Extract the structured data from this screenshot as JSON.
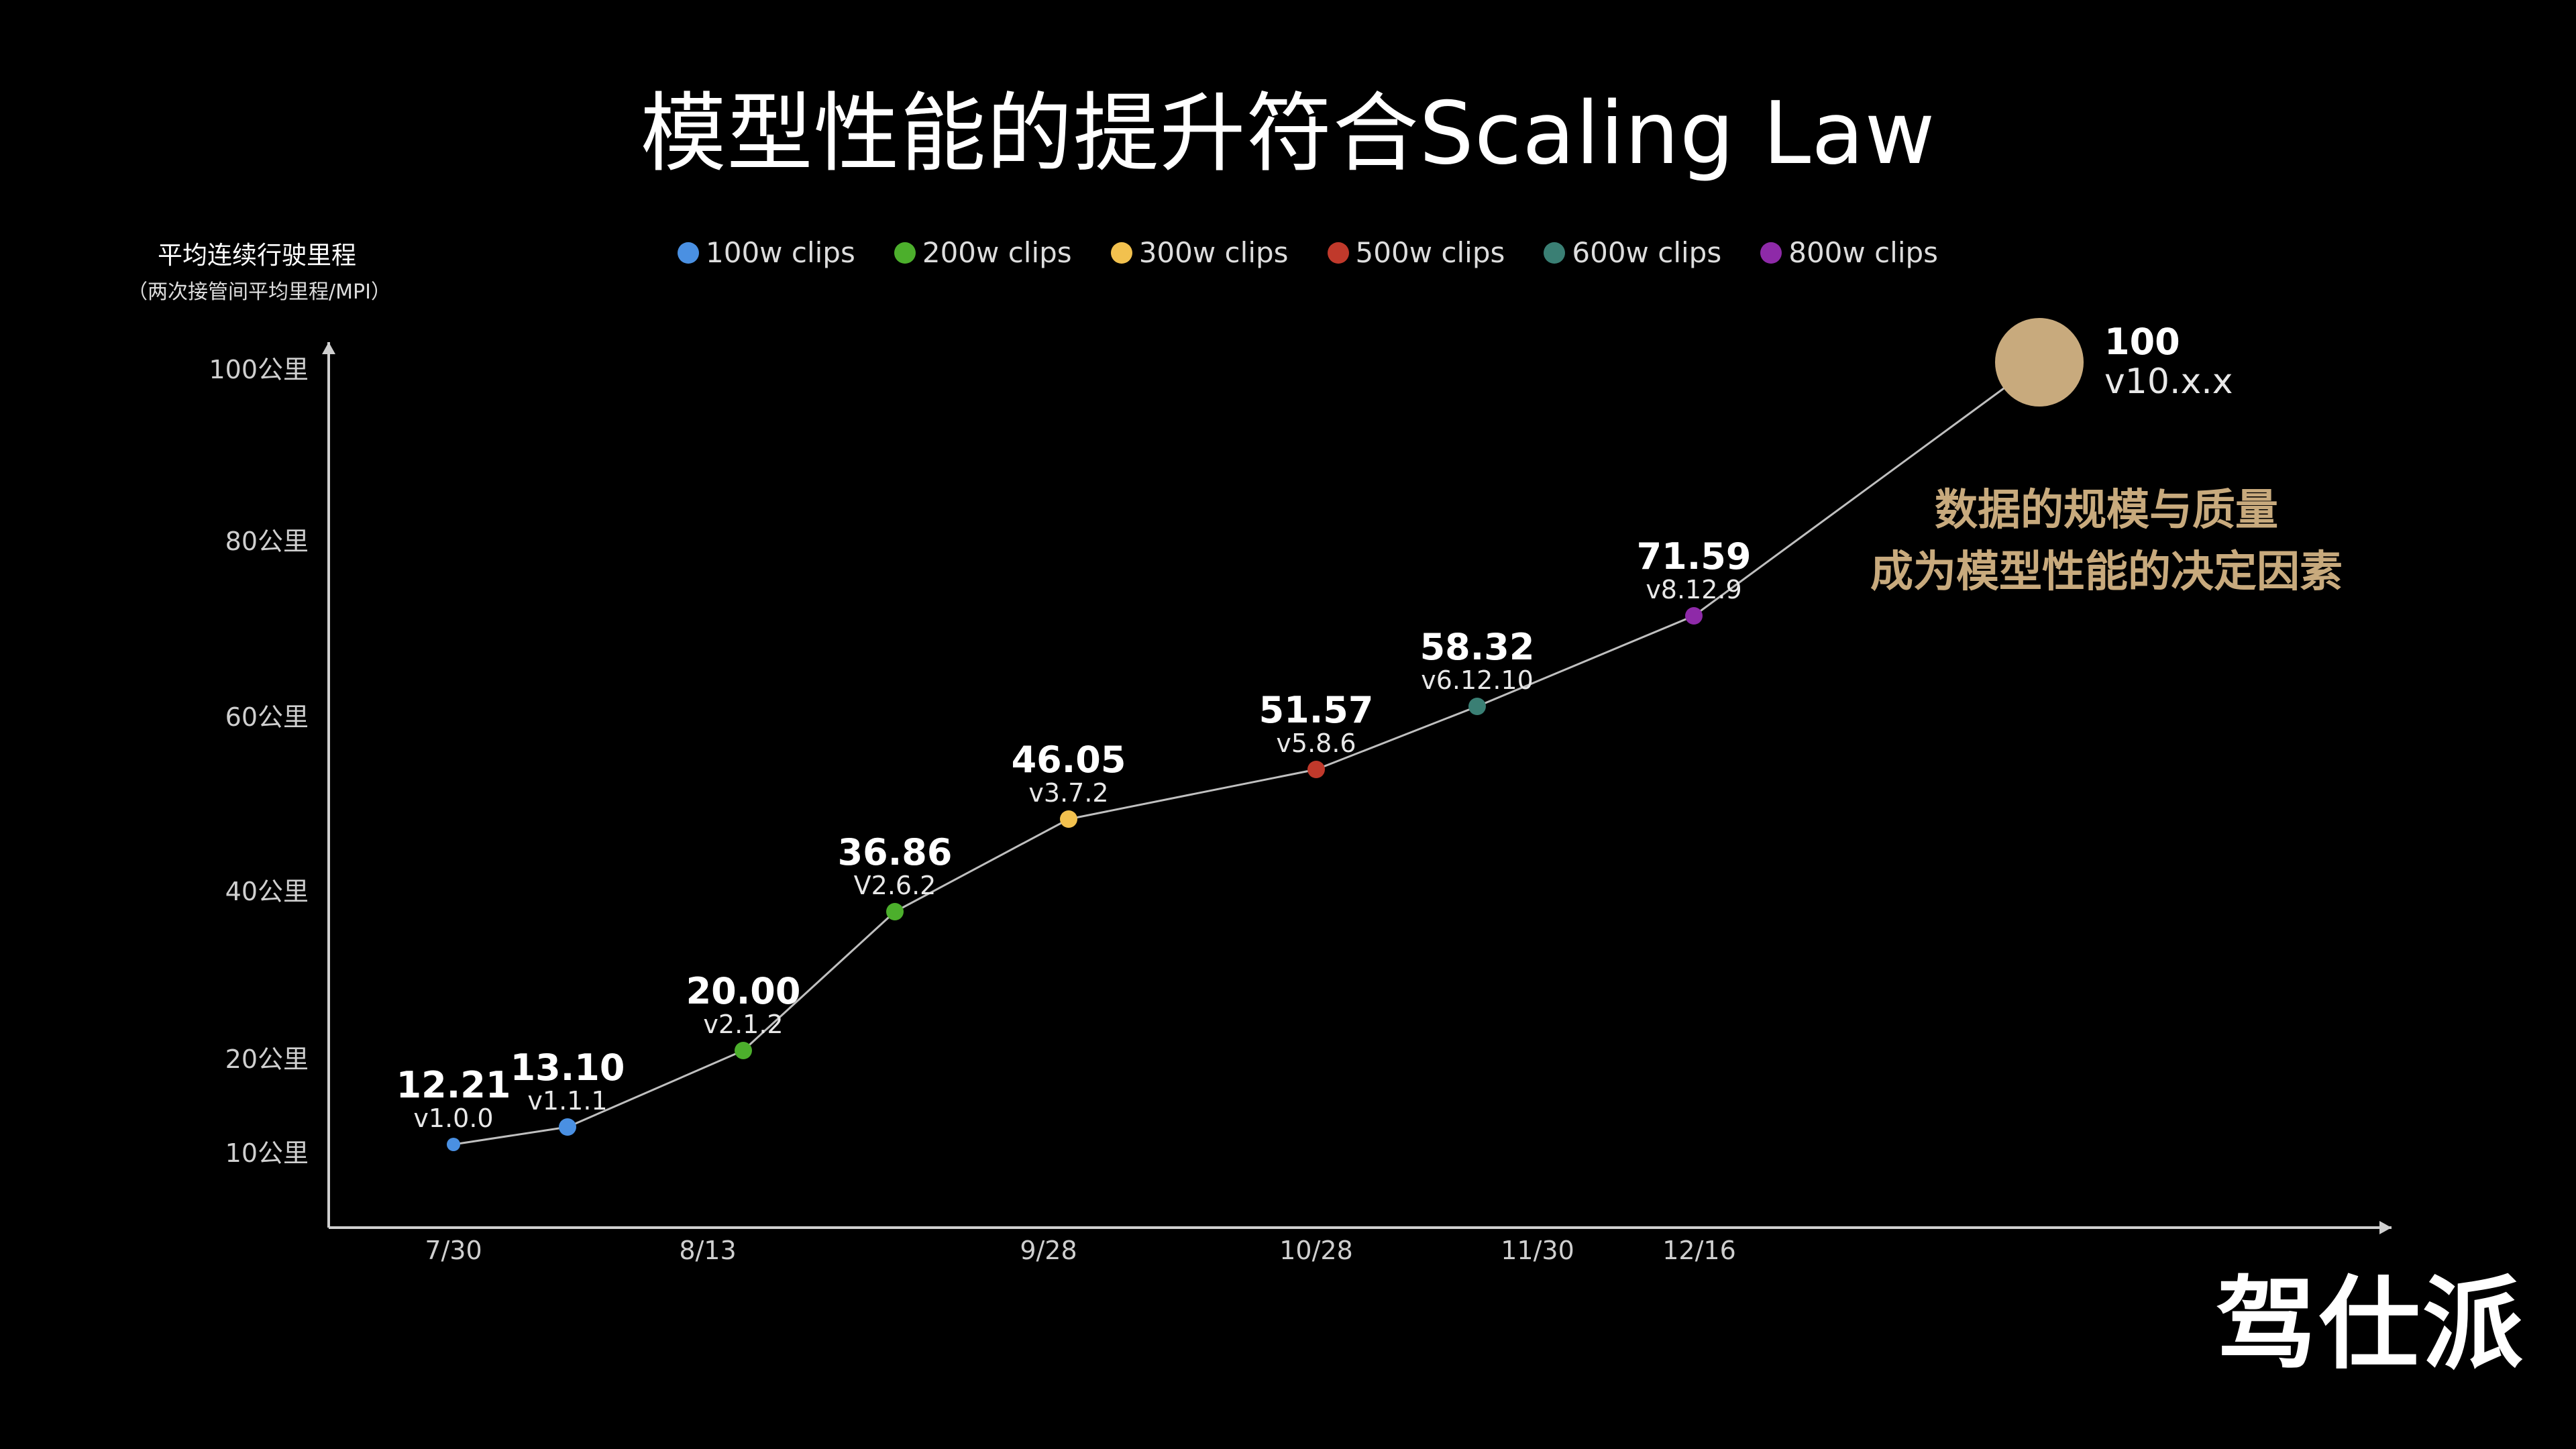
{
  "title": "模型性能的提升符合Scaling Law",
  "ylabel": "平均连续行驶里程",
  "ylabel_sub": "（两次接管间平均里程/MPI）",
  "legend": [
    {
      "label": "100w clips",
      "color": "#4a90e2"
    },
    {
      "label": "200w clips",
      "color": "#4caf2c"
    },
    {
      "label": "300w clips",
      "color": "#f2c14e"
    },
    {
      "label": "500w clips",
      "color": "#c0392b"
    },
    {
      "label": "600w clips",
      "color": "#3a7f74"
    },
    {
      "label": "800w clips",
      "color": "#8e2aa8"
    }
  ],
  "annotation": {
    "line1": "数据的规模与质量",
    "line2": "成为模型性能的决定因素",
    "color": "#c8aa7d"
  },
  "brand": "驾仕派",
  "chart_data": {
    "type": "line",
    "title": "模型性能的提升符合Scaling Law",
    "ylabel": "平均连续行驶里程",
    "xlabel": "",
    "yticks": [
      "10公里",
      "20公里",
      "40公里",
      "60公里",
      "80公里",
      "100公里"
    ],
    "xticks": [
      "7/30",
      "8/13",
      "9/28",
      "10/28",
      "11/30",
      "12/16"
    ],
    "points": [
      {
        "value": 12.21,
        "label": "12.21",
        "version": "v1.0.0",
        "series": "100w clips",
        "color": "#4a90e2"
      },
      {
        "value": 13.1,
        "label": "13.10",
        "version": "v1.1.1",
        "series": "100w clips",
        "color": "#4a90e2"
      },
      {
        "value": 20.0,
        "label": "20.00",
        "version": "v2.1.2",
        "series": "200w clips",
        "color": "#4caf2c"
      },
      {
        "value": 36.86,
        "label": "36.86",
        "version": "V2.6.2",
        "series": "200w clips",
        "color": "#4caf2c"
      },
      {
        "value": 46.05,
        "label": "46.05",
        "version": "v3.7.2",
        "series": "300w clips",
        "color": "#f2c14e"
      },
      {
        "value": 51.57,
        "label": "51.57",
        "version": "v5.8.6",
        "series": "500w clips",
        "color": "#c0392b"
      },
      {
        "value": 58.32,
        "label": "58.32",
        "version": "v6.12.10",
        "series": "600w clips",
        "color": "#3a7f74"
      },
      {
        "value": 71.59,
        "label": "71.59",
        "version": "v8.12.9",
        "series": "800w clips",
        "color": "#8e2aa8"
      },
      {
        "value": 100,
        "label": "100",
        "version": "v10.x.x",
        "series": "target",
        "color": "#c8aa7d"
      }
    ]
  }
}
